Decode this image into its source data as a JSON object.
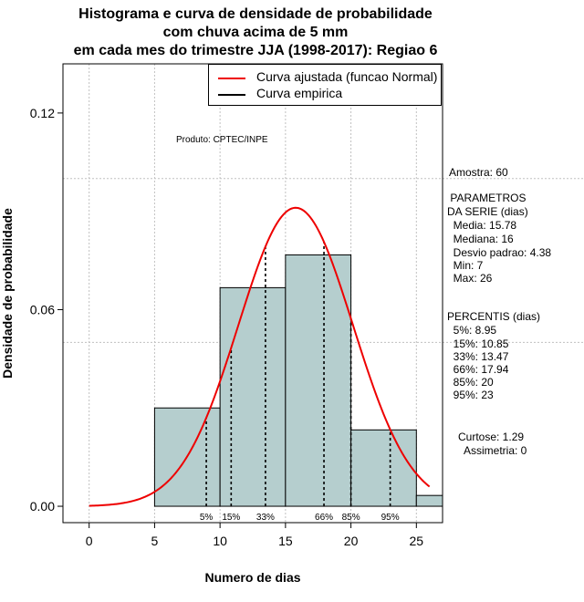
{
  "chart_data": {
    "type": "bar",
    "title": [
      "Histograma e curva de densidade de probabilidade",
      "com chuva acima de 5 mm",
      "em cada mes do trimestre JJA (1998-2017): Regiao 6"
    ],
    "xlabel": "Numero de dias",
    "ylabel": "Densidade de probabilidade",
    "xlim": [
      -2,
      27
    ],
    "ylim": [
      -0.005,
      0.135
    ],
    "x_ticks": [
      0,
      5,
      10,
      15,
      20,
      25
    ],
    "y_ticks": [
      0.0,
      0.06,
      0.12
    ],
    "y_tick_labels": [
      "0.00",
      "0.06",
      "0.12"
    ],
    "gridlines_x": [
      0,
      5,
      10,
      15,
      20,
      25
    ],
    "gridlines_y": [
      0.05,
      0.1
    ],
    "bins": [
      {
        "from": 5,
        "to": 10,
        "density": 0.03
      },
      {
        "from": 10,
        "to": 15,
        "density": 0.0667
      },
      {
        "from": 15,
        "to": 20,
        "density": 0.0767
      },
      {
        "from": 20,
        "to": 25,
        "density": 0.0233
      },
      {
        "from": 25,
        "to": 30,
        "density": 0.0033
      }
    ],
    "bar_color": "#b5cece",
    "normal_curve": {
      "mean": 15.78,
      "sd": 4.38,
      "x_from": 0,
      "x_to": 26,
      "color": "#ee0000"
    },
    "percentile_lines": [
      {
        "label": "5%",
        "x": 8.95
      },
      {
        "label": "15%",
        "x": 10.85
      },
      {
        "label": "33%",
        "x": 13.47
      },
      {
        "label": "66%",
        "x": 17.94
      },
      {
        "label": "85%",
        "x": 20
      },
      {
        "label": "95%",
        "x": 23
      }
    ],
    "legend": [
      {
        "label": "Curva ajustada (funcao Normal)",
        "color": "#ee0000"
      },
      {
        "label": "Curva empirica",
        "color": "#000000"
      }
    ],
    "legend_position": "top-right",
    "annotation": "Produto: CPTEC/INPE"
  },
  "stats": {
    "amostra": "Amostra: 60",
    "parametros_title": " PARAMETROS",
    "parametros_subtitle": "DA SERIE (dias)",
    "media": "  Media: 15.78",
    "mediana": "  Mediana: 16",
    "desvio": "  Desvio padrao: 4.38",
    "min": "  Min: 7",
    "max": "  Max: 26",
    "percentis_title": "PERCENTIS (dias)",
    "p5": "  5%: 8.95",
    "p15": "  15%: 10.85",
    "p33": "  33%: 13.47",
    "p66": "  66%: 17.94",
    "p85": "  85%: 20",
    "p95": "  95%: 23",
    "curtose": "Curtose: 1.29",
    "assimetria": "  Assimetria: 0"
  }
}
